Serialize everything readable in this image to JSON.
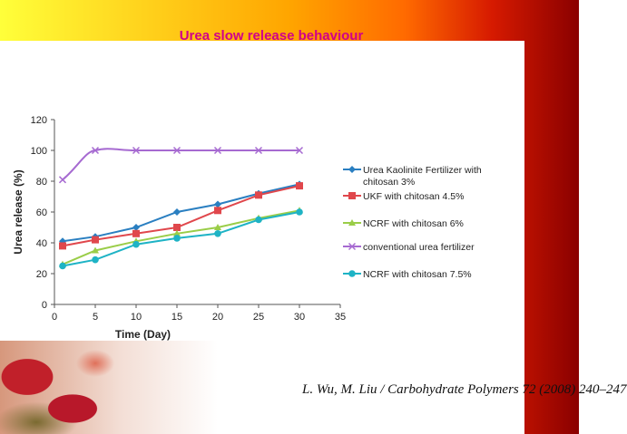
{
  "slide": {
    "title": "Urea slow release behaviour",
    "citation": "L. Wu, M. Liu / Carbohydrate Polymers 72 (2008) 240–247"
  },
  "colors": {
    "title": "#d0008a",
    "series": [
      "#2a7fc1",
      "#e0474c",
      "#9acd48",
      "#a66ad1",
      "#1eb3c5"
    ]
  },
  "chart_data": {
    "type": "line",
    "xlabel": "Time (Day)",
    "ylabel": "Urea release (%)",
    "xlim": [
      0,
      35
    ],
    "ylim": [
      0,
      120
    ],
    "xticks": [
      0,
      5,
      10,
      15,
      20,
      25,
      30,
      35
    ],
    "yticks": [
      0,
      20,
      40,
      60,
      80,
      100,
      120
    ],
    "legend_position": "right",
    "series": [
      {
        "name": "Urea Kaolinite Fertilizer with chitosan 3%",
        "marker": "diamond",
        "x": [
          1,
          5,
          10,
          15,
          20,
          25,
          30
        ],
        "y": [
          41,
          44,
          50,
          60,
          65,
          72,
          78
        ]
      },
      {
        "name": "UKF with chitosan 4.5%",
        "marker": "square",
        "x": [
          1,
          5,
          10,
          15,
          20,
          25,
          30
        ],
        "y": [
          38,
          42,
          46,
          50,
          61,
          71,
          77
        ]
      },
      {
        "name": "NCRF with chitosan 6%",
        "marker": "triangle",
        "x": [
          1,
          5,
          10,
          15,
          20,
          25,
          30
        ],
        "y": [
          26,
          35,
          41,
          46,
          50,
          56,
          61
        ]
      },
      {
        "name": "conventional urea fertilizer",
        "marker": "x",
        "x": [
          1,
          5,
          10,
          15,
          20,
          25,
          30
        ],
        "y": [
          81,
          100,
          100,
          100,
          100,
          100,
          100
        ]
      },
      {
        "name": "NCRF with chitosan 7.5%",
        "marker": "circle",
        "x": [
          1,
          5,
          10,
          15,
          20,
          25,
          30
        ],
        "y": [
          25,
          29,
          39,
          43,
          46,
          55,
          60
        ]
      }
    ]
  }
}
